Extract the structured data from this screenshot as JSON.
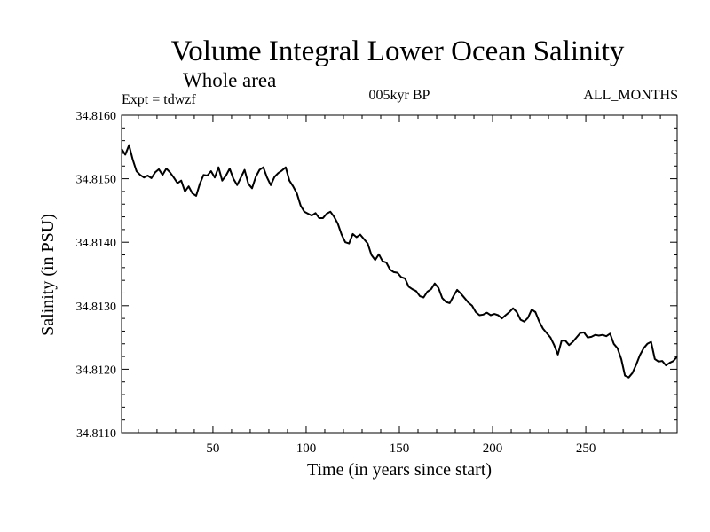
{
  "chart_data": {
    "type": "line",
    "title": "Volume Integral Lower Ocean Salinity",
    "subtitle": "Whole area",
    "annotations": {
      "experiment": "Expt = tdwzf",
      "period": "005kyr BP",
      "months": "ALL_MONTHS"
    },
    "xlabel": "Time (in years since start)",
    "ylabel": "Salinity (in PSU)",
    "xlim": [
      1,
      299
    ],
    "ylim": [
      34.811,
      34.816
    ],
    "x_ticks": [
      50,
      100,
      150,
      200,
      250
    ],
    "x_tick_labels": [
      "50",
      "100",
      "150",
      "200",
      "250"
    ],
    "y_ticks": [
      34.811,
      34.812,
      34.813,
      34.814,
      34.815,
      34.816
    ],
    "y_tick_labels": [
      "34.8110",
      "34.8120",
      "34.8130",
      "34.8140",
      "34.8150",
      "34.8160"
    ],
    "grid": false,
    "line_color": "#000000",
    "series": [
      {
        "x": [
          1,
          3,
          5,
          7,
          9,
          11,
          13,
          15,
          17,
          19,
          21,
          23,
          25,
          27,
          29,
          31,
          33,
          35,
          37,
          39,
          41,
          43,
          45,
          47,
          49,
          51,
          53,
          55,
          57,
          59,
          61,
          63,
          65,
          67,
          69,
          71,
          73,
          75,
          77,
          79,
          81,
          83,
          85,
          87,
          89,
          91,
          93,
          95,
          97,
          99,
          101,
          103,
          105,
          107,
          109,
          111,
          113,
          115,
          117,
          119,
          121,
          123,
          125,
          127,
          129,
          131,
          133,
          135,
          137,
          139,
          141,
          143,
          145,
          147,
          149,
          151,
          153,
          155,
          157,
          159,
          161,
          163,
          165,
          167,
          169,
          171,
          173,
          175,
          177,
          179,
          181,
          183,
          185,
          187,
          189,
          191,
          193,
          195,
          197,
          199,
          201,
          203,
          205,
          207,
          209,
          211,
          213,
          215,
          217,
          219,
          221,
          223,
          225,
          227,
          229,
          231,
          233,
          235,
          237,
          239,
          241,
          243,
          245,
          247,
          249,
          251,
          253,
          255,
          257,
          259,
          261,
          263,
          265,
          267,
          269,
          271,
          273,
          275,
          277,
          279,
          281,
          283,
          285,
          287,
          289,
          291,
          293,
          295,
          297,
          299
        ],
        "y": [
          34.81547,
          34.81538,
          34.81553,
          34.8153,
          34.81512,
          34.81506,
          34.81502,
          34.81505,
          34.81501,
          34.8151,
          34.81515,
          34.81506,
          34.81516,
          34.8151,
          34.81502,
          34.81493,
          34.81497,
          34.8148,
          34.81488,
          34.81477,
          34.81473,
          34.81492,
          34.81506,
          34.81505,
          34.81512,
          34.81502,
          34.81518,
          34.81497,
          34.81505,
          34.81516,
          34.815,
          34.8149,
          34.81502,
          34.81514,
          34.81492,
          34.81485,
          34.81503,
          34.81514,
          34.81518,
          34.81502,
          34.8149,
          34.81503,
          34.81509,
          34.81513,
          34.81518,
          34.81497,
          34.81488,
          34.81477,
          34.81458,
          34.81448,
          34.81445,
          34.81442,
          34.81446,
          34.81438,
          34.81438,
          34.81445,
          34.81448,
          34.8144,
          34.81429,
          34.81412,
          34.814,
          34.81398,
          34.81413,
          34.81408,
          34.81412,
          34.81405,
          34.81398,
          34.8138,
          34.81372,
          34.81381,
          34.8137,
          34.81368,
          34.81357,
          34.81353,
          34.81352,
          34.81345,
          34.81343,
          34.8133,
          34.81326,
          34.81323,
          34.81315,
          34.81313,
          34.81322,
          34.81326,
          34.81335,
          34.81328,
          34.81312,
          34.81306,
          34.81304,
          34.81315,
          34.81325,
          34.81319,
          34.81312,
          34.81305,
          34.813,
          34.8129,
          34.81285,
          34.81286,
          34.81289,
          34.81285,
          34.81287,
          34.81285,
          34.8128,
          34.81285,
          34.8129,
          34.81296,
          34.8129,
          34.81278,
          34.81275,
          34.81281,
          34.81294,
          34.8129,
          34.81275,
          34.81264,
          34.81257,
          34.8125,
          34.81238,
          34.81223,
          34.81245,
          34.81245,
          34.81238,
          34.81243,
          34.8125,
          34.81257,
          34.81258,
          34.8125,
          34.81251,
          34.81254,
          34.81253,
          34.81254,
          34.81252,
          34.81256,
          34.8124,
          34.81233,
          34.81216,
          34.8119,
          34.81187,
          34.81194,
          34.81207,
          34.81222,
          34.81233,
          34.8124,
          34.81243,
          34.81216,
          34.81212,
          34.81213,
          34.81206,
          34.8121,
          34.81213,
          34.8122
        ]
      }
    ]
  }
}
